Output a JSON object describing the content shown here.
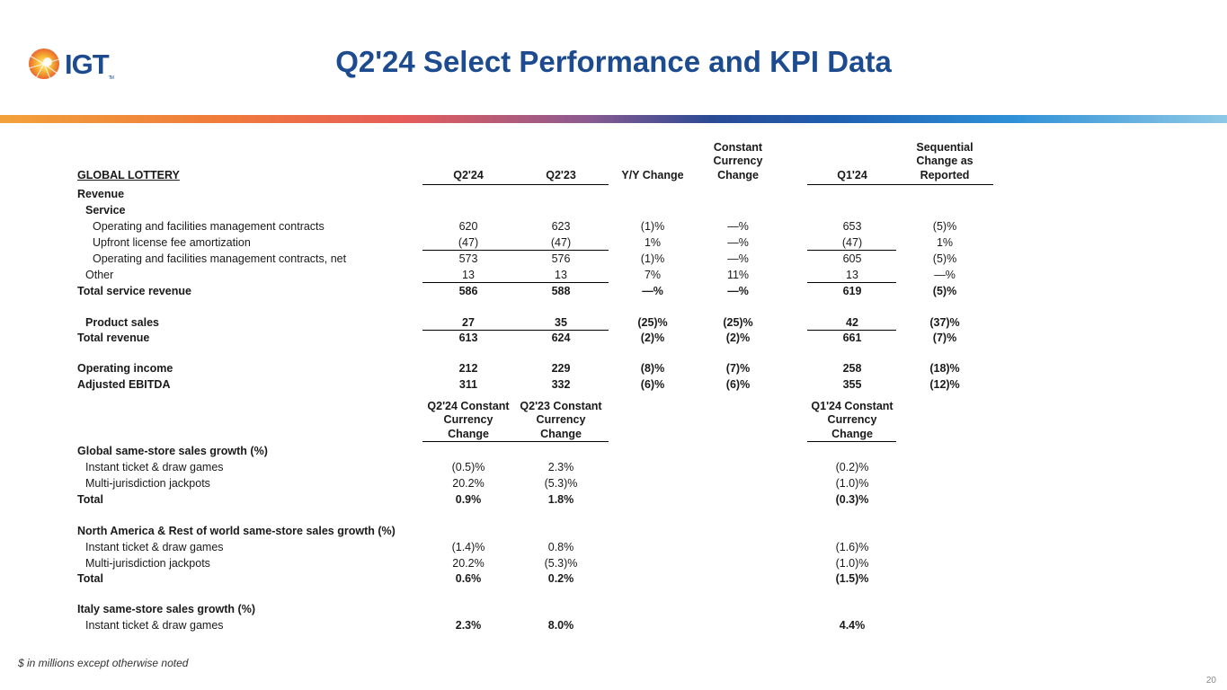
{
  "brand": {
    "name": "IGT",
    "tm": "TM"
  },
  "title": "Q2'24 Select Performance and KPI Data",
  "section_label": "GLOBAL LOTTERY",
  "headers": {
    "q224": "Q2'24",
    "q223": "Q2'23",
    "yy": "Y/Y Change",
    "cc": [
      "Constant",
      "Currency",
      "Change"
    ],
    "q124": "Q1'24",
    "seq": [
      "Sequential",
      "Change as",
      "Reported"
    ]
  },
  "rows": [
    {
      "label": "Revenue",
      "indent": 0,
      "bold": true,
      "values": [
        "",
        "",
        "",
        "",
        "",
        ""
      ]
    },
    {
      "label": "Service",
      "indent": 1,
      "bold": true,
      "values": [
        "",
        "",
        "",
        "",
        "",
        ""
      ]
    },
    {
      "label": "Operating and facilities management contracts",
      "indent": 2,
      "bold": false,
      "values": [
        "620",
        "623",
        "(1)%",
        "—%",
        "653",
        "(5)%"
      ]
    },
    {
      "label": "Upfront license fee amortization",
      "indent": 2,
      "bold": false,
      "values": [
        "(47)",
        "(47)",
        "1%",
        "—%",
        "(47)",
        "1%"
      ]
    },
    {
      "label": "Operating and facilities management contracts, net",
      "indent": 2,
      "bold": false,
      "values": [
        "573",
        "576",
        "(1)%",
        "—%",
        "605",
        "(5)%"
      ]
    },
    {
      "label": "Other",
      "indent": 1,
      "bold": false,
      "values": [
        "13",
        "13",
        "7%",
        "11%",
        "13",
        "—%"
      ]
    },
    {
      "label": "Total service revenue",
      "indent": 0,
      "bold": true,
      "values": [
        "586",
        "588",
        "—%",
        "—%",
        "619",
        "(5)%"
      ]
    },
    {
      "label": "Product sales",
      "indent": 1,
      "bold": true,
      "values": [
        "27",
        "35",
        "(25)%",
        "(25)%",
        "42",
        "(37)%"
      ]
    },
    {
      "label": "Total revenue",
      "indent": 0,
      "bold": true,
      "values": [
        "613",
        "624",
        "(2)%",
        "(2)%",
        "661",
        "(7)%"
      ]
    },
    {
      "label": "Operating income",
      "indent": 0,
      "bold": true,
      "values": [
        "212",
        "229",
        "(8)%",
        "(7)%",
        "258",
        "(18)%"
      ]
    },
    {
      "label": "Adjusted EBITDA",
      "indent": 0,
      "bold": true,
      "values": [
        "311",
        "332",
        "(6)%",
        "(6)%",
        "355",
        "(12)%"
      ]
    }
  ],
  "kpi_headers": {
    "q224": [
      "Q2'24 Constant",
      "Currency",
      "Change"
    ],
    "q223": [
      "Q2'23 Constant",
      "Currency",
      "Change"
    ],
    "q124": [
      "Q1'24 Constant",
      "Currency",
      "Change"
    ]
  },
  "kpi_rows": [
    {
      "label": "Global same-store sales growth (%)",
      "indent": 0,
      "bold": true,
      "values": [
        "",
        "",
        ""
      ]
    },
    {
      "label": "Instant ticket & draw games",
      "indent": 1,
      "bold": false,
      "values": [
        "(0.5)%",
        "2.3%",
        "(0.2)%"
      ]
    },
    {
      "label": "Multi-jurisdiction jackpots",
      "indent": 1,
      "bold": false,
      "values": [
        "20.2%",
        "(5.3)%",
        "(1.0)%"
      ]
    },
    {
      "label": "Total",
      "indent": 0,
      "bold": true,
      "values": [
        "0.9%",
        "1.8%",
        "(0.3)%"
      ]
    },
    {
      "label": "North America & Rest of world same-store sales growth (%)",
      "indent": 0,
      "bold": true,
      "values": [
        "",
        "",
        ""
      ]
    },
    {
      "label": "Instant ticket & draw games",
      "indent": 1,
      "bold": false,
      "values": [
        "(1.4)%",
        "0.8%",
        "(1.6)%"
      ]
    },
    {
      "label": "Multi-jurisdiction jackpots",
      "indent": 1,
      "bold": false,
      "values": [
        "20.2%",
        "(5.3)%",
        "(1.0)%"
      ]
    },
    {
      "label": "Total",
      "indent": 0,
      "bold": true,
      "values": [
        "0.6%",
        "0.2%",
        "(1.5)%"
      ]
    },
    {
      "label": "Italy same-store sales growth (%)",
      "indent": 0,
      "bold": true,
      "values": [
        "",
        "",
        ""
      ]
    },
    {
      "label": "Instant ticket & draw games",
      "indent": 1,
      "bold": false,
      "values": [
        "2.3%",
        "8.0%",
        "4.4%"
      ]
    }
  ],
  "footnote": "$ in millions except otherwise noted",
  "page_number": "20",
  "colors": {
    "title": "#1d4b8f",
    "logo_sun": "#f2a13a"
  }
}
